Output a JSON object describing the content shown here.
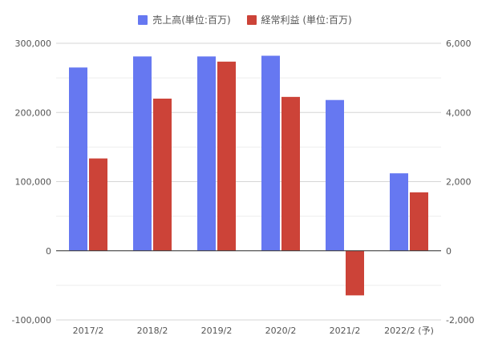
{
  "chart_data": {
    "type": "bar",
    "categories": [
      "2017/2",
      "2018/2",
      "2019/2",
      "2020/2",
      "2021/2",
      "2022/2 (予)"
    ],
    "series": [
      {
        "name": "売上高(単位:百万)",
        "axis": "left",
        "color": "#6678f1",
        "values": [
          265000,
          281000,
          281000,
          282000,
          218000,
          112000
        ]
      },
      {
        "name": "経常利益 (単位:百万)",
        "axis": "right",
        "color": "#cc4338",
        "values": [
          2670,
          4400,
          5470,
          4450,
          -1290,
          1690
        ]
      }
    ],
    "y_left": {
      "min": -100000,
      "max": 300000,
      "ticks": [
        "300,000",
        "200,000",
        "100,000",
        "0",
        "-100,000"
      ]
    },
    "y_right": {
      "min": -2000,
      "max": 6000,
      "ticks": [
        "6,000",
        "4,000",
        "2,000",
        "0",
        "-2,000"
      ]
    },
    "legend_position": "top",
    "grid": true
  }
}
